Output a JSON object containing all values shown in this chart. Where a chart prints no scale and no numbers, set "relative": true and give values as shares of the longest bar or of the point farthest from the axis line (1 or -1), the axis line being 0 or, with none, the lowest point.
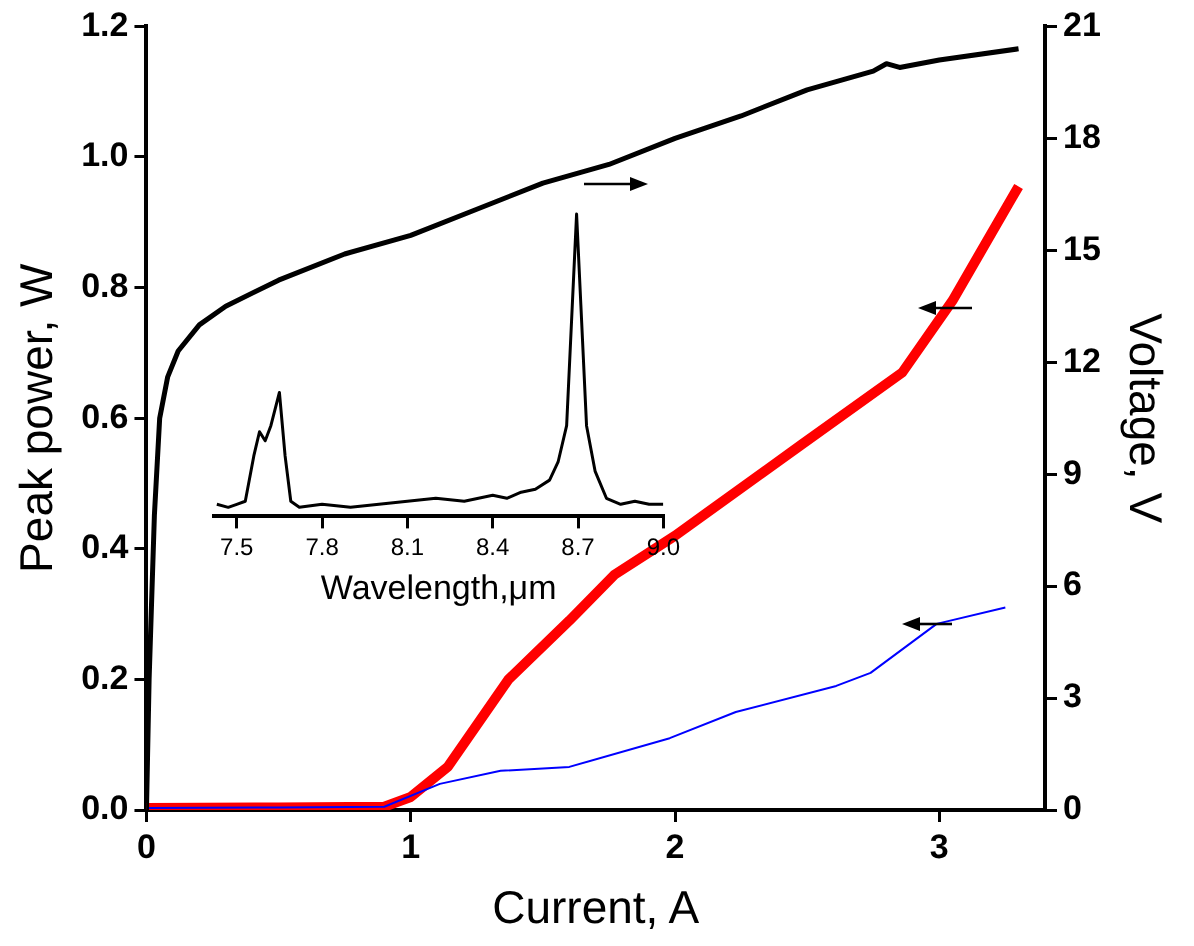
{
  "chart_data": [
    {
      "type": "line",
      "xlabel": "Current, A",
      "ylabel": "Peak power, W",
      "y2label": "Voltage, V",
      "marker": "none",
      "xlim": [
        0,
        3.4
      ],
      "xticks": [
        0,
        1,
        2,
        3
      ],
      "ylim": [
        0,
        1.2
      ],
      "yticks": [
        {
          "value": 0,
          "label": "0.0"
        },
        0.2,
        0.4,
        0.6,
        0.8,
        {
          "value": 1,
          "label": "1.0"
        },
        1.2
      ],
      "y2lim": [
        0,
        21
      ],
      "y2ticks": [
        0,
        3,
        6,
        9,
        12,
        15,
        18,
        21
      ],
      "series": [
        {
          "color": "#000000",
          "axis": "y2",
          "x": [
            0,
            0.01,
            0.03,
            0.05,
            0.08,
            0.12,
            0.2,
            0.3,
            0.5,
            0.75,
            1.0,
            1.25,
            1.5,
            1.75,
            2.0,
            2.25,
            2.5,
            2.75,
            2.8,
            2.85,
            3.0,
            3.3
          ],
          "values": [
            0,
            3.5,
            7.9,
            10.5,
            11.6,
            12.3,
            13.0,
            13.5,
            14.2,
            14.9,
            15.4,
            16.1,
            16.8,
            17.3,
            18.0,
            18.6,
            19.3,
            19.8,
            20.0,
            19.9,
            20.1,
            20.4
          ]
        },
        {
          "color": "#0000ff",
          "x": [
            0,
            0.5,
            0.9,
            1.11,
            1.34,
            1.6,
            1.98,
            2.23,
            2.61,
            2.74,
            2.99,
            3.25
          ],
          "values": [
            0.003,
            0.004,
            0.005,
            0.04,
            0.06,
            0.066,
            0.11,
            0.15,
            0.19,
            0.21,
            0.285,
            0.31
          ]
        },
        {
          "color": "#ff0000",
          "x": [
            0,
            0.5,
            0.9,
            1.0,
            1.14,
            1.37,
            1.6,
            1.77,
            2.0,
            2.48,
            2.86,
            3.05,
            3.3
          ],
          "values": [
            0.003,
            0.004,
            0.005,
            0.02,
            0.066,
            0.2,
            0.29,
            0.36,
            0.42,
            0.56,
            0.67,
            0.78,
            0.955
          ]
        }
      ]
    },
    {
      "type": "line",
      "xlabel": "Wavelength,μm",
      "relative": true,
      "tick_labels": "x",
      "marker": "none",
      "xlim": [
        7.42,
        9.0
      ],
      "xticks": [
        7.5,
        7.8,
        8.1,
        8.4,
        8.7,
        {
          "value": 9,
          "label": "9.0"
        }
      ],
      "series": [
        {
          "color": "#000000",
          "x": [
            7.43,
            7.47,
            7.5,
            7.53,
            7.56,
            7.58,
            7.6,
            7.62,
            7.65,
            7.67,
            7.69,
            7.72,
            7.8,
            7.9,
            8.0,
            8.1,
            8.2,
            8.3,
            8.4,
            8.45,
            8.5,
            8.55,
            8.6,
            8.63,
            8.66,
            8.68,
            8.695,
            8.71,
            8.73,
            8.76,
            8.8,
            8.85,
            8.9,
            8.95,
            9.0
          ],
          "values": [
            0.04,
            0.03,
            0.04,
            0.05,
            0.2,
            0.28,
            0.25,
            0.3,
            0.41,
            0.2,
            0.05,
            0.03,
            0.04,
            0.03,
            0.04,
            0.05,
            0.06,
            0.05,
            0.07,
            0.06,
            0.08,
            0.09,
            0.12,
            0.18,
            0.3,
            0.7,
            1.0,
            0.7,
            0.3,
            0.15,
            0.06,
            0.04,
            0.05,
            0.04,
            0.04
          ]
        }
      ]
    }
  ]
}
